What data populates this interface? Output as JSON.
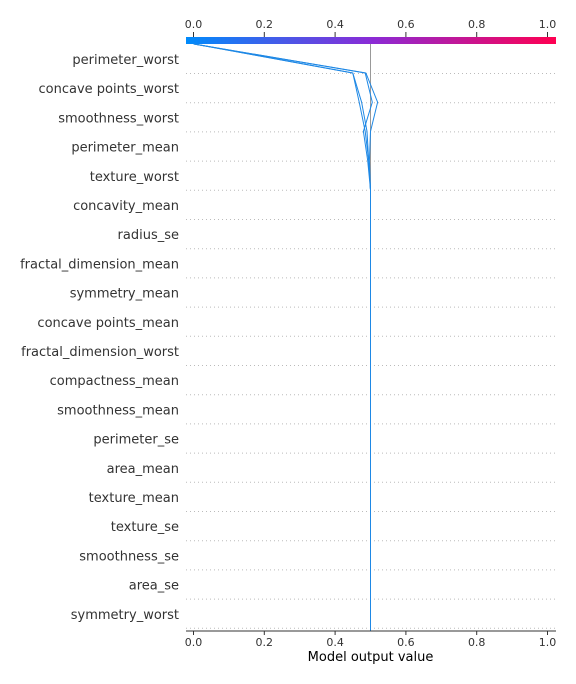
{
  "chart_data": {
    "type": "line",
    "subtype": "shap-decision-plot",
    "title": "",
    "xlabel": "Model output value",
    "ylabel": "",
    "xlim": [
      0.0,
      1.0
    ],
    "x_ticks": [
      "0.0",
      "0.2",
      "0.4",
      "0.6",
      "0.8",
      "1.0"
    ],
    "top_ticks": [
      "0.0",
      "0.2",
      "0.4",
      "0.6",
      "0.8",
      "1.0"
    ],
    "base_value": 0.5,
    "colorbar": {
      "from": "#008bfb",
      "mid": "#8a2bd6",
      "to": "#ff0051"
    },
    "line_color": "#1e88e5",
    "grid": "dotted horizontal",
    "features": [
      "perimeter_worst",
      "concave points_worst",
      "smoothness_worst",
      "perimeter_mean",
      "texture_worst",
      "concavity_mean",
      "radius_se",
      "fractal_dimension_mean",
      "symmetry_mean",
      "concave points_mean",
      "fractal_dimension_worst",
      "compactness_mean",
      "smoothness_mean",
      "perimeter_se",
      "area_mean",
      "texture_mean",
      "texture_se",
      "smoothness_se",
      "area_se",
      "symmetry_worst"
    ],
    "series": [
      {
        "values": [
          0.002,
          0.45,
          0.475,
          0.49,
          0.495,
          0.5,
          0.5,
          0.5,
          0.5,
          0.5,
          0.5,
          0.5,
          0.5,
          0.5,
          0.5,
          0.5,
          0.5,
          0.5,
          0.5,
          0.5,
          0.5
        ]
      },
      {
        "values": [
          0.003,
          0.45,
          0.468,
          0.485,
          0.495,
          0.5,
          0.5,
          0.5,
          0.5,
          0.5,
          0.5,
          0.5,
          0.5,
          0.5,
          0.5,
          0.5,
          0.5,
          0.5,
          0.5,
          0.5,
          0.5
        ]
      },
      {
        "values": [
          0.0,
          0.487,
          0.52,
          0.5,
          0.497,
          0.5,
          0.5,
          0.5,
          0.5,
          0.5,
          0.5,
          0.5,
          0.5,
          0.5,
          0.5,
          0.5,
          0.5,
          0.5,
          0.5,
          0.5,
          0.5
        ]
      },
      {
        "values": [
          0.001,
          0.485,
          0.505,
          0.48,
          0.492,
          0.5,
          0.5,
          0.5,
          0.5,
          0.5,
          0.5,
          0.5,
          0.5,
          0.5,
          0.5,
          0.5,
          0.5,
          0.5,
          0.5,
          0.5,
          0.5
        ]
      }
    ]
  }
}
